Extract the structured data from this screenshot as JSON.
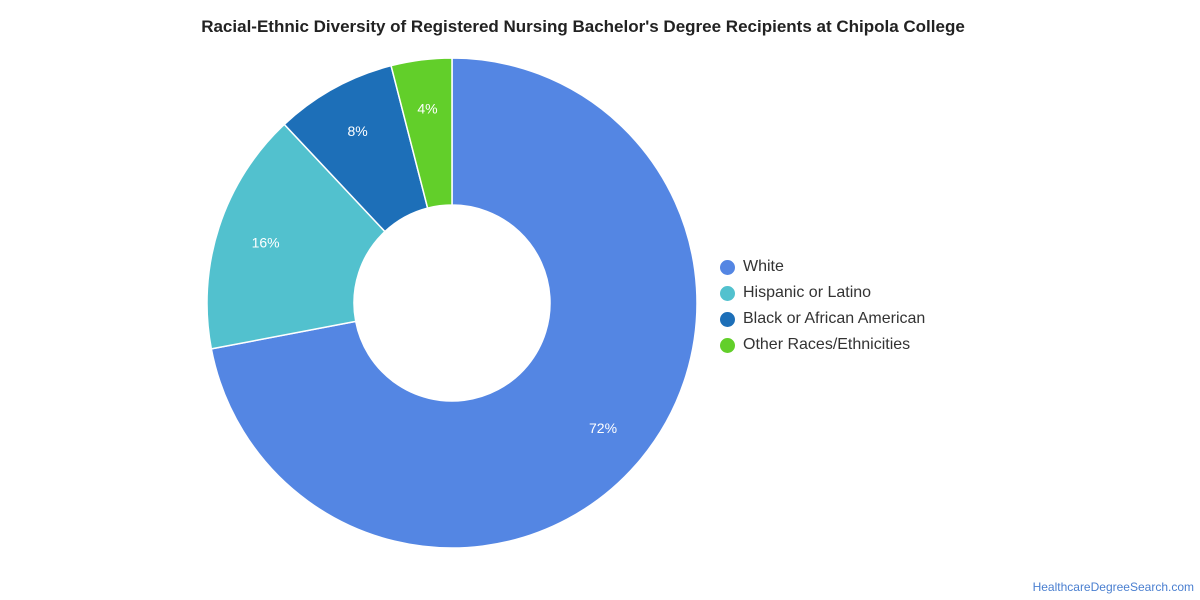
{
  "chart_data": {
    "type": "pie",
    "title": "Racial-Ethnic Diversity of Registered Nursing Bachelor's Degree Recipients at Chipola College",
    "categories": [
      "White",
      "Hispanic or Latino",
      "Black or African American",
      "Other Races/Ethnicities"
    ],
    "values": [
      72,
      16,
      8,
      4
    ],
    "data_labels": [
      "72%",
      "16%",
      "8%",
      "4%"
    ],
    "colors": [
      "#5486e3",
      "#52c1ce",
      "#1d6fb8",
      "#62cf2a"
    ],
    "donut": true,
    "legend_position": "right"
  },
  "footer": {
    "source": "HealthcareDegreeSearch.com"
  }
}
